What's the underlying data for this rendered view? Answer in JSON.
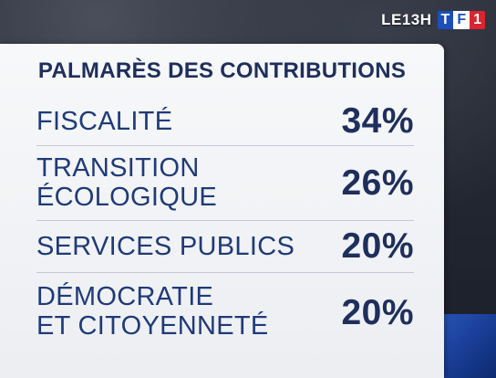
{
  "channel": {
    "program": "LE13H",
    "logo_letters": [
      "T",
      "F",
      "1"
    ]
  },
  "panel": {
    "title": "PALMARÈS DES CONTRIBUTIONS",
    "rows": [
      {
        "label": "FISCALITÉ",
        "value": "34%"
      },
      {
        "label": "TRANSITION\nÉCOLOGIQUE",
        "value": "26%"
      },
      {
        "label": "SERVICES PUBLICS",
        "value": "20%"
      },
      {
        "label": "DÉMOCRATIE\nET CITOYENNETÉ",
        "value": "20%"
      }
    ]
  },
  "colors": {
    "title": "#1f2f5c",
    "label": "#1f3a78",
    "value": "#1f2f5c",
    "tf1_blue": "#1d4fb8",
    "tf1_red": "#d9252f"
  }
}
